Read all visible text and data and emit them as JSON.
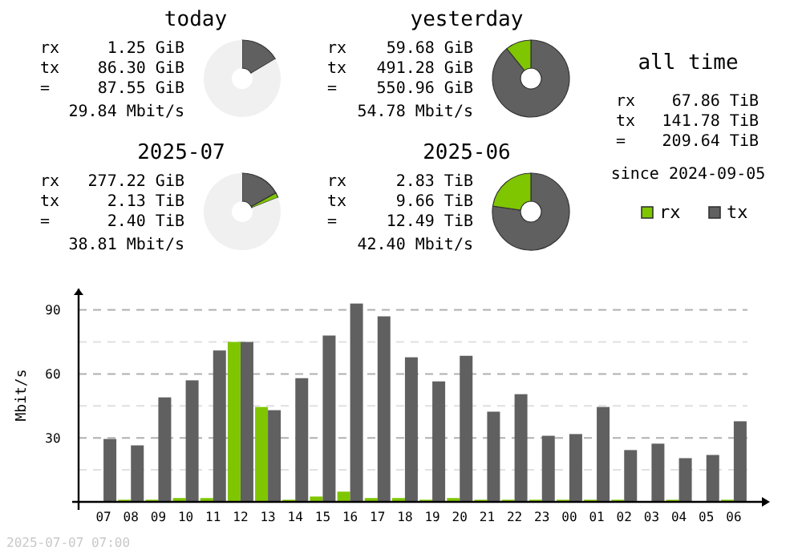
{
  "chart_data": [
    {
      "type": "donut",
      "title": "today",
      "categories": [
        null,
        null,
        null
      ],
      "values": [
        16.5,
        null,
        83.5
      ],
      "colors": [
        "#606060",
        "#7fc600",
        "#f0f0f0"
      ],
      "annotations": [
        "rx 1.25 GiB",
        "tx 86.30 GiB",
        "= 87.55 GiB",
        "29.84 Mbit/s"
      ]
    },
    {
      "type": "donut",
      "title": "yesterday",
      "categories": [
        null,
        null
      ],
      "values": [
        89.2,
        10.8
      ],
      "colors": [
        "#606060",
        "#7fc600"
      ],
      "annotations": [
        "rx 59.68 GiB",
        "tx 491.28 GiB",
        "= 550.96 GiB",
        "54.78 Mbit/s"
      ]
    },
    {
      "type": "other",
      "title": "all time",
      "annotations": [
        "rx 67.86 TiB",
        "tx 141.78 TiB",
        "= 209.64 TiB",
        "since 2024-09-05"
      ]
    },
    {
      "type": "donut",
      "title": "2025-07",
      "categories": [
        null,
        null,
        null
      ],
      "values": [
        16.9,
        2.1,
        81.0
      ],
      "colors": [
        "#606060",
        "#7fc600",
        "#f0f0f0"
      ],
      "annotations": [
        "rx 277.22 GiB",
        "tx 2.13 TiB",
        "= 2.40 TiB",
        "38.81 Mbit/s"
      ]
    },
    {
      "type": "donut",
      "title": "2025-06",
      "categories": [
        null,
        null
      ],
      "values": [
        77.3,
        22.7
      ],
      "colors": [
        "#606060",
        "#7fc600"
      ],
      "annotations": [
        "rx 2.83 TiB",
        "tx 9.66 TiB",
        "= 12.49 TiB",
        "42.40 Mbit/s"
      ]
    },
    {
      "type": "bar",
      "ylabel": "Mbit/s",
      "categories": [
        "07",
        "08",
        "09",
        "10",
        "11",
        "12",
        "13",
        "14",
        "15",
        "16",
        "17",
        "18",
        "19",
        "20",
        "21",
        "22",
        "23",
        "00",
        "01",
        "02",
        "03",
        "04",
        "05",
        "06"
      ],
      "series": [
        {
          "name": "rx",
          "color": "#7fc600",
          "values": [
            0,
            1,
            1,
            1.8,
            1.8,
            75,
            44.5,
            1,
            2.5,
            4.8,
            1.8,
            1.8,
            1,
            1.8,
            1,
            1,
            1,
            1,
            1,
            1,
            0,
            1,
            0,
            1
          ]
        },
        {
          "name": "tx",
          "color": "#606060",
          "values": [
            29.5,
            26.5,
            49,
            57,
            71,
            75,
            43,
            58,
            78,
            93,
            87,
            67.8,
            56.5,
            68.5,
            42.3,
            50.5,
            31,
            31.8,
            44.5,
            24.3,
            27.3,
            20.5,
            22,
            37.8
          ]
        }
      ],
      "ylim": [
        0,
        100
      ],
      "yticks": [
        {
          "value": 15,
          "label": null
        },
        30,
        {
          "value": 45,
          "label": null
        },
        60,
        {
          "value": 75,
          "label": null
        },
        90
      ],
      "grid": "y",
      "legend": "top right",
      "annotations": [
        "2025-07-07 07:00"
      ]
    }
  ]
}
